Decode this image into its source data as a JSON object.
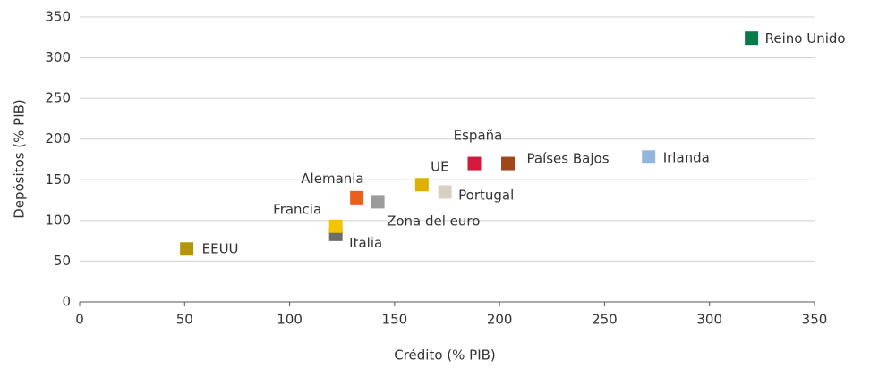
{
  "chart_data": {
    "type": "scatter",
    "xlabel": "Crédito (% PIB)",
    "ylabel": "Depósitos (% PIB)",
    "xlim": [
      0,
      350
    ],
    "xticks": [
      0,
      50,
      100,
      150,
      200,
      250,
      300,
      350
    ],
    "ylim": [
      0,
      350
    ],
    "yticks": [
      0,
      50,
      100,
      150,
      200,
      250,
      300,
      350
    ],
    "grid": true,
    "series": [
      {
        "name": "EEUU",
        "color": "#b5960a",
        "x": [
          51
        ],
        "values": [
          65
        ]
      },
      {
        "name": "Italia",
        "color": "#6d6d6d",
        "x": [
          122
        ],
        "values": [
          83
        ]
      },
      {
        "name": "Francia",
        "color": "#f5c400",
        "x": [
          122
        ],
        "values": [
          93
        ]
      },
      {
        "name": "Alemania",
        "color": "#e8601c",
        "x": [
          132
        ],
        "values": [
          128
        ]
      },
      {
        "name": "Zona del euro",
        "color": "#9b9b9b",
        "x": [
          142
        ],
        "values": [
          123
        ]
      },
      {
        "name": "UE",
        "color": "#e0b000",
        "x": [
          163
        ],
        "values": [
          144
        ]
      },
      {
        "name": "Portugal",
        "color": "#d9d0c4",
        "x": [
          174
        ],
        "values": [
          135
        ]
      },
      {
        "name": "España",
        "color": "#d4193c",
        "x": [
          188
        ],
        "values": [
          170
        ]
      },
      {
        "name": "Países Bajos",
        "color": "#a0461b",
        "x": [
          204
        ],
        "values": [
          170
        ]
      },
      {
        "name": "Irlanda",
        "color": "#93b7dc",
        "x": [
          271
        ],
        "values": [
          178
        ]
      },
      {
        "name": "Reino Unido",
        "color": "#0a7a4b",
        "x": [
          320
        ],
        "values": [
          324
        ]
      }
    ]
  }
}
